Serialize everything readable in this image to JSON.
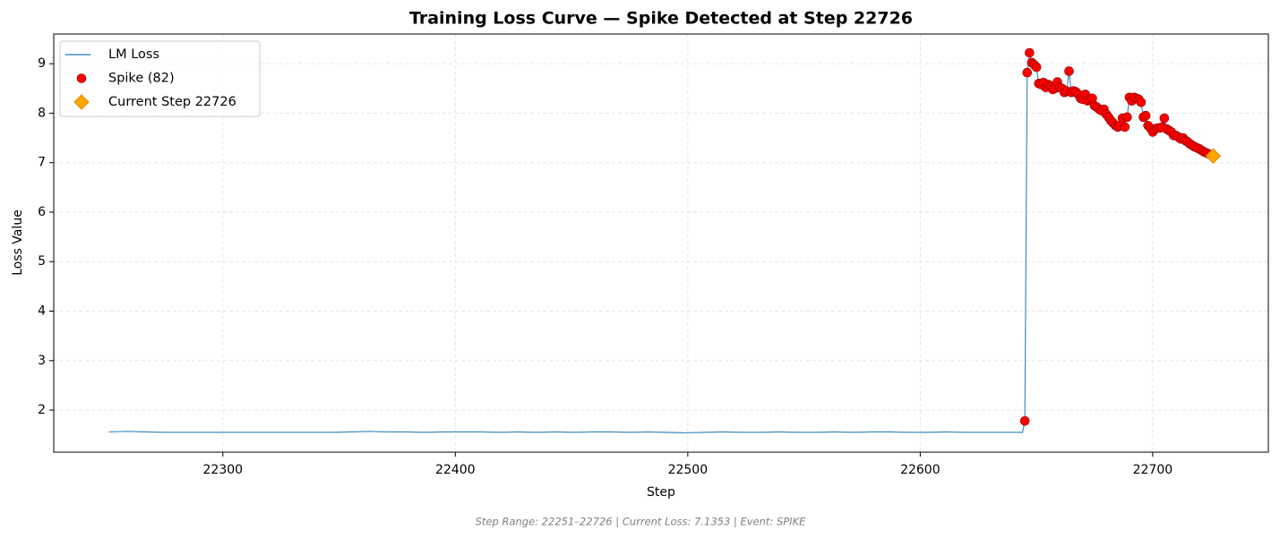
{
  "chart_data": {
    "type": "line",
    "title": "Training Loss Curve — Spike Detected at Step 22726",
    "xlabel": "Step",
    "ylabel": "Loss Value",
    "footnote": "Step Range: 22251–22726 | Current Loss: 7.1353 | Event: SPIKE",
    "xlim": [
      22227.25,
      22749.75
    ],
    "ylim": [
      1.15,
      9.6
    ],
    "xticks": [
      22300,
      22400,
      22500,
      22600,
      22700
    ],
    "yticks": [
      2,
      3,
      4,
      5,
      6,
      7,
      8,
      9
    ],
    "grid": true,
    "legend": "upper left",
    "series": [
      {
        "name": "LM Loss",
        "type": "line",
        "color": "#1f77b4",
        "x": [
          22251,
          22259,
          22267,
          22275,
          22283,
          22291,
          22299,
          22307,
          22315,
          22323,
          22331,
          22339,
          22347,
          22355,
          22363,
          22371,
          22379,
          22387,
          22395,
          22403,
          22411,
          22419,
          22427,
          22435,
          22443,
          22451,
          22459,
          22467,
          22475,
          22483,
          22491,
          22499,
          22507,
          22515,
          22523,
          22531,
          22539,
          22547,
          22555,
          22563,
          22571,
          22579,
          22587,
          22595,
          22603,
          22611,
          22619,
          22627,
          22635,
          22643,
          22644,
          22645,
          22646,
          22647,
          22648,
          22649,
          22650,
          22651,
          22652,
          22653,
          22654,
          22655,
          22656,
          22657,
          22658,
          22659,
          22660,
          22661,
          22662,
          22663,
          22664,
          22665,
          22666,
          22667,
          22668,
          22669,
          22670,
          22671,
          22672,
          22673,
          22674,
          22675,
          22676,
          22677,
          22678,
          22679,
          22680,
          22681,
          22682,
          22683,
          22684,
          22685,
          22686,
          22687,
          22688,
          22689,
          22690,
          22691,
          22692,
          22693,
          22694,
          22695,
          22696,
          22697,
          22698,
          22699,
          22700,
          22701,
          22702,
          22703,
          22704,
          22705,
          22706,
          22707,
          22708,
          22709,
          22710,
          22711,
          22712,
          22713,
          22714,
          22715,
          22716,
          22717,
          22718,
          22719,
          22720,
          22721,
          22722,
          22723,
          22724,
          22725,
          22726
        ],
        "values": [
          1.56,
          1.57,
          1.56,
          1.55,
          1.55,
          1.55,
          1.55,
          1.55,
          1.55,
          1.55,
          1.55,
          1.55,
          1.55,
          1.56,
          1.57,
          1.56,
          1.56,
          1.55,
          1.56,
          1.56,
          1.56,
          1.55,
          1.56,
          1.55,
          1.56,
          1.55,
          1.56,
          1.56,
          1.55,
          1.56,
          1.55,
          1.54,
          1.55,
          1.56,
          1.55,
          1.55,
          1.56,
          1.55,
          1.55,
          1.56,
          1.55,
          1.56,
          1.56,
          1.55,
          1.55,
          1.56,
          1.55,
          1.55,
          1.55,
          1.55,
          1.55,
          1.78,
          8.82,
          9.22,
          9.02,
          8.98,
          8.93,
          8.6,
          8.58,
          8.62,
          8.52,
          8.58,
          8.55,
          8.48,
          8.5,
          8.63,
          8.52,
          8.5,
          8.42,
          8.45,
          8.85,
          8.42,
          8.45,
          8.43,
          8.38,
          8.3,
          8.28,
          8.38,
          8.25,
          8.28,
          8.3,
          8.15,
          8.12,
          8.08,
          8.05,
          8.08,
          7.98,
          7.92,
          7.85,
          7.8,
          7.75,
          7.72,
          7.75,
          7.9,
          7.72,
          7.92,
          8.32,
          8.25,
          8.32,
          8.3,
          8.28,
          8.22,
          7.92,
          7.95,
          7.75,
          7.7,
          7.62,
          7.68,
          7.7,
          7.7,
          7.72,
          7.9,
          7.68,
          7.65,
          7.62,
          7.55,
          7.55,
          7.52,
          7.48,
          7.5,
          7.45,
          7.42,
          7.38,
          7.35,
          7.32,
          7.3,
          7.28,
          7.25,
          7.22,
          7.2,
          7.18,
          7.16,
          7.1353
        ]
      },
      {
        "name": "Spike (82)",
        "type": "scatter",
        "color": "#ff0000",
        "x": [
          22645,
          22646,
          22647,
          22648,
          22649,
          22650,
          22651,
          22652,
          22653,
          22654,
          22655,
          22656,
          22657,
          22658,
          22659,
          22660,
          22661,
          22662,
          22663,
          22664,
          22665,
          22666,
          22667,
          22668,
          22669,
          22670,
          22671,
          22672,
          22673,
          22674,
          22675,
          22676,
          22677,
          22678,
          22679,
          22680,
          22681,
          22682,
          22683,
          22684,
          22685,
          22686,
          22687,
          22688,
          22689,
          22690,
          22691,
          22692,
          22693,
          22694,
          22695,
          22696,
          22697,
          22698,
          22699,
          22700,
          22701,
          22702,
          22703,
          22704,
          22705,
          22706,
          22707,
          22708,
          22709,
          22710,
          22711,
          22712,
          22713,
          22714,
          22715,
          22716,
          22717,
          22718,
          22719,
          22720,
          22721,
          22722,
          22723,
          22724,
          22725,
          22726
        ],
        "values": [
          1.78,
          8.82,
          9.22,
          9.02,
          8.98,
          8.93,
          8.6,
          8.58,
          8.62,
          8.52,
          8.58,
          8.55,
          8.48,
          8.5,
          8.63,
          8.52,
          8.5,
          8.42,
          8.45,
          8.85,
          8.42,
          8.45,
          8.43,
          8.38,
          8.3,
          8.28,
          8.38,
          8.25,
          8.28,
          8.3,
          8.15,
          8.12,
          8.08,
          8.05,
          8.08,
          7.98,
          7.92,
          7.85,
          7.8,
          7.75,
          7.72,
          7.75,
          7.9,
          7.72,
          7.92,
          8.32,
          8.25,
          8.32,
          8.3,
          8.28,
          8.22,
          7.92,
          7.95,
          7.75,
          7.7,
          7.62,
          7.68,
          7.7,
          7.7,
          7.72,
          7.9,
          7.68,
          7.65,
          7.62,
          7.55,
          7.55,
          7.52,
          7.48,
          7.5,
          7.45,
          7.42,
          7.38,
          7.35,
          7.32,
          7.3,
          7.28,
          7.25,
          7.22,
          7.2,
          7.18,
          7.16,
          7.1353
        ]
      },
      {
        "name": "Current Step 22726",
        "type": "scatter",
        "marker": "diamond",
        "color": "#ffa500",
        "x": [
          22726
        ],
        "values": [
          7.1353
        ]
      }
    ]
  }
}
